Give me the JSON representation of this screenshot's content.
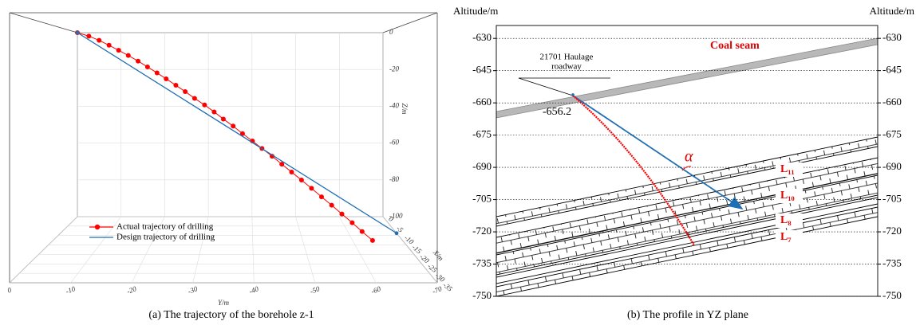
{
  "chart_data": [
    {
      "type": "trajectory3d",
      "caption": "(a) The trajectory of the borehole z-1",
      "xlabel": "X/m",
      "ylabel": "Y/m",
      "zlabel": "Z/m",
      "xlim": [
        0,
        -35
      ],
      "xticks": [
        0,
        -5,
        -10,
        -15,
        -20,
        -25,
        -30,
        -35
      ],
      "ylim": [
        0,
        -70
      ],
      "yticks": [
        0,
        -10,
        -20,
        -30,
        -40,
        -50,
        -60,
        -70
      ],
      "zlim": [
        0,
        -100
      ],
      "zticks": [
        0,
        -20,
        -40,
        -60,
        -80,
        -100
      ],
      "grid": true,
      "series": [
        {
          "name": "Actual trajectory of drilling",
          "color": "#ff0000",
          "marker": "circle",
          "x": [
            0,
            -0.42,
            -0.84,
            -1.26,
            -1.68,
            -2.1,
            -2.52,
            -2.94,
            -3.36,
            -3.78,
            -4.2,
            -4.62,
            -5.04,
            -5.46,
            -5.88,
            -6.3,
            -6.72,
            -7.14,
            -7.56,
            -7.98,
            -8.4,
            -8.82,
            -9.24,
            -9.66,
            -10.08,
            -10.5,
            -10.92,
            -11.34,
            -11.76,
            -12.18,
            -12.6
          ],
          "y": [
            0,
            -2.8,
            -5.3,
            -7.7,
            -10,
            -12.3,
            -14.6,
            -16.8,
            -19,
            -21.1,
            -23.3,
            -25.4,
            -27.5,
            -29.7,
            -31.8,
            -33.8,
            -35.9,
            -37.9,
            -40,
            -42,
            -44.1,
            -46.1,
            -48.1,
            -50.1,
            -52.1,
            -54.1,
            -56.1,
            -58.1,
            -60.1,
            -62,
            -64
          ],
          "z": [
            0,
            -2,
            -4.4,
            -7.1,
            -9.9,
            -12.7,
            -15.7,
            -18.8,
            -21.9,
            -25,
            -28.3,
            -31.5,
            -34.9,
            -38.2,
            -41.6,
            -45.1,
            -48.5,
            -52.1,
            -55.6,
            -59.1,
            -62.7,
            -66.4,
            -70,
            -73.6,
            -77.3,
            -81.1,
            -84.8,
            -88.6,
            -92.4,
            -96.2,
            -100
          ]
        },
        {
          "name": "Design trajectory of drilling",
          "color": "#1f6fb4",
          "x": [
            0,
            -8.75
          ],
          "y": [
            0,
            -70
          ],
          "z": [
            0,
            -100
          ]
        }
      ]
    },
    {
      "type": "profile",
      "caption": "(b) The profile in YZ plane",
      "ylabel": "Altitude/m",
      "y2label": "Altitude/m",
      "ylim": [
        -750,
        -624
      ],
      "yticks": [
        -630,
        -645,
        -660,
        -675,
        -690,
        -705,
        -720,
        -735,
        -750
      ],
      "y2lim": [
        -750,
        -624
      ],
      "y2ticks": [
        -630,
        -645,
        -660,
        -675,
        -690,
        -705,
        -720,
        -735,
        -750
      ],
      "grid": true,
      "coal_seam": "Coal seam",
      "roadway": [
        "21701 Haulage",
        "roadway"
      ],
      "entry_altitude": -656.2,
      "angle_label": "α",
      "strata": [
        "L₁₁",
        "L₁₀",
        "L₈",
        "L₇"
      ]
    }
  ]
}
